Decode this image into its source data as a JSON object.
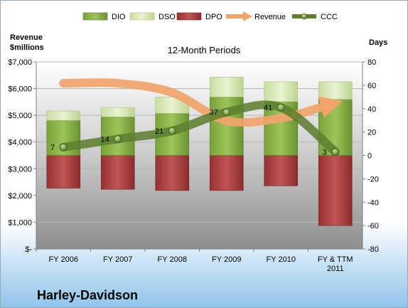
{
  "chart_data": {
    "type": "bar",
    "subtitle": "12-Month Periods",
    "company": "Harley-Davidson",
    "left_axis_title": "Revenue $millions",
    "right_axis_title": "Days",
    "categories": [
      "FY 2006",
      "FY 2007",
      "FY 2008",
      "FY 2009",
      "FY 2010",
      "FY & TTM 2011"
    ],
    "left_axis": {
      "min": 0,
      "max": 7000,
      "step": 1000
    },
    "right_axis": {
      "min": -80,
      "max": 80,
      "step": 20
    },
    "left_tick_labels": [
      "$-",
      "$1,000",
      "$2,000",
      "$3,000",
      "$4,000",
      "$5,000",
      "$6,000",
      "$7,000"
    ],
    "right_tick_labels": [
      "-80",
      "-60",
      "-40",
      "-20",
      "0",
      "20",
      "40",
      "60",
      "80"
    ],
    "legend": [
      "DIO",
      "DSO",
      "DPO",
      "Revenue",
      "CCC"
    ],
    "legend_position": "top",
    "grid": true,
    "series": [
      {
        "name": "DIO",
        "axis": "days",
        "color": "#6f9a2f",
        "values": [
          30,
          33,
          36,
          50,
          46,
          48
        ]
      },
      {
        "name": "DSO",
        "axis": "days",
        "color": "#d7e8b0",
        "values": [
          8,
          8,
          14,
          17,
          17,
          15
        ]
      },
      {
        "name": "DPO",
        "axis": "days",
        "color": "#a33b3b",
        "values": [
          -28,
          -29,
          -30,
          -30,
          -26,
          -60
        ]
      },
      {
        "name": "Revenue",
        "axis": "revenue",
        "color": "#f2a46a",
        "values": [
          6200,
          6200,
          5850,
          4800,
          4900,
          5400
        ]
      },
      {
        "name": "CCC",
        "axis": "days",
        "color": "#5d7f2f",
        "values": [
          7,
          14,
          21,
          37,
          41,
          3
        ]
      }
    ],
    "ccc_labels": [
      "7",
      "14",
      "21",
      "37",
      "41",
      "3"
    ]
  }
}
